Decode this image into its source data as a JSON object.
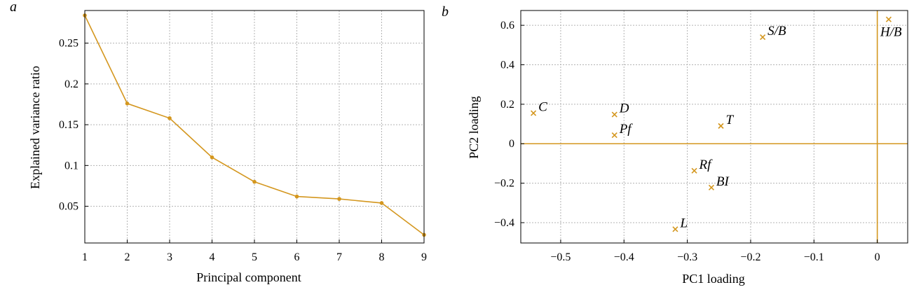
{
  "colors": {
    "accent": "#D4971F",
    "grid": "#b3b3b3",
    "frame": "#000000"
  },
  "chart_data": [
    {
      "panel_label": "a",
      "type": "line",
      "xlabel": "Principal component",
      "ylabel": "Explained variance ratio",
      "x": [
        1,
        2,
        3,
        4,
        5,
        6,
        7,
        8,
        9
      ],
      "y": [
        0.284,
        0.176,
        0.158,
        0.11,
        0.08,
        0.062,
        0.059,
        0.054,
        0.015
      ],
      "xticks": [
        1,
        2,
        3,
        4,
        5,
        6,
        7,
        8,
        9
      ],
      "xtick_labels": [
        "1",
        "2",
        "3",
        "4",
        "5",
        "6",
        "7",
        "8",
        "9"
      ],
      "yticks": [
        0.05,
        0.1,
        0.15,
        0.2,
        0.25
      ],
      "ytick_labels": [
        "0.05",
        "0.1",
        "0.15",
        "0.2",
        "0.25"
      ],
      "xlim": [
        1,
        9
      ],
      "ylim": [
        0.005,
        0.29
      ],
      "grid": true
    },
    {
      "panel_label": "b",
      "type": "scatter",
      "xlabel": "PC1 loading",
      "ylabel": "PC2 loading",
      "points": [
        {
          "label": "C",
          "x": -0.543,
          "y": 0.155
        },
        {
          "label": "D",
          "x": -0.415,
          "y": 0.148
        },
        {
          "label": "Pf",
          "x": -0.415,
          "y": 0.043
        },
        {
          "label": "T",
          "x": -0.247,
          "y": 0.09
        },
        {
          "label": "S/B",
          "x": -0.181,
          "y": 0.54
        },
        {
          "label": "H/B",
          "x": 0.018,
          "y": 0.63
        },
        {
          "label": "Rf",
          "x": -0.289,
          "y": -0.137
        },
        {
          "label": "BI",
          "x": -0.262,
          "y": -0.222
        },
        {
          "label": "L",
          "x": -0.319,
          "y": -0.433
        }
      ],
      "xticks": [
        -0.5,
        -0.4,
        -0.3,
        -0.2,
        -0.1,
        0
      ],
      "xtick_labels": [
        "−0.5",
        "−0.4",
        "−0.3",
        "−0.2",
        "−0.1",
        "0"
      ],
      "yticks": [
        -0.4,
        -0.2,
        0,
        0.2,
        0.4,
        0.6
      ],
      "ytick_labels": [
        "−0.4",
        "−0.2",
        "0",
        "0.2",
        "0.4",
        "0.6"
      ],
      "xlim": [
        -0.563,
        0.048
      ],
      "ylim": [
        -0.503,
        0.675
      ],
      "zero_lines": true,
      "grid": true
    }
  ]
}
